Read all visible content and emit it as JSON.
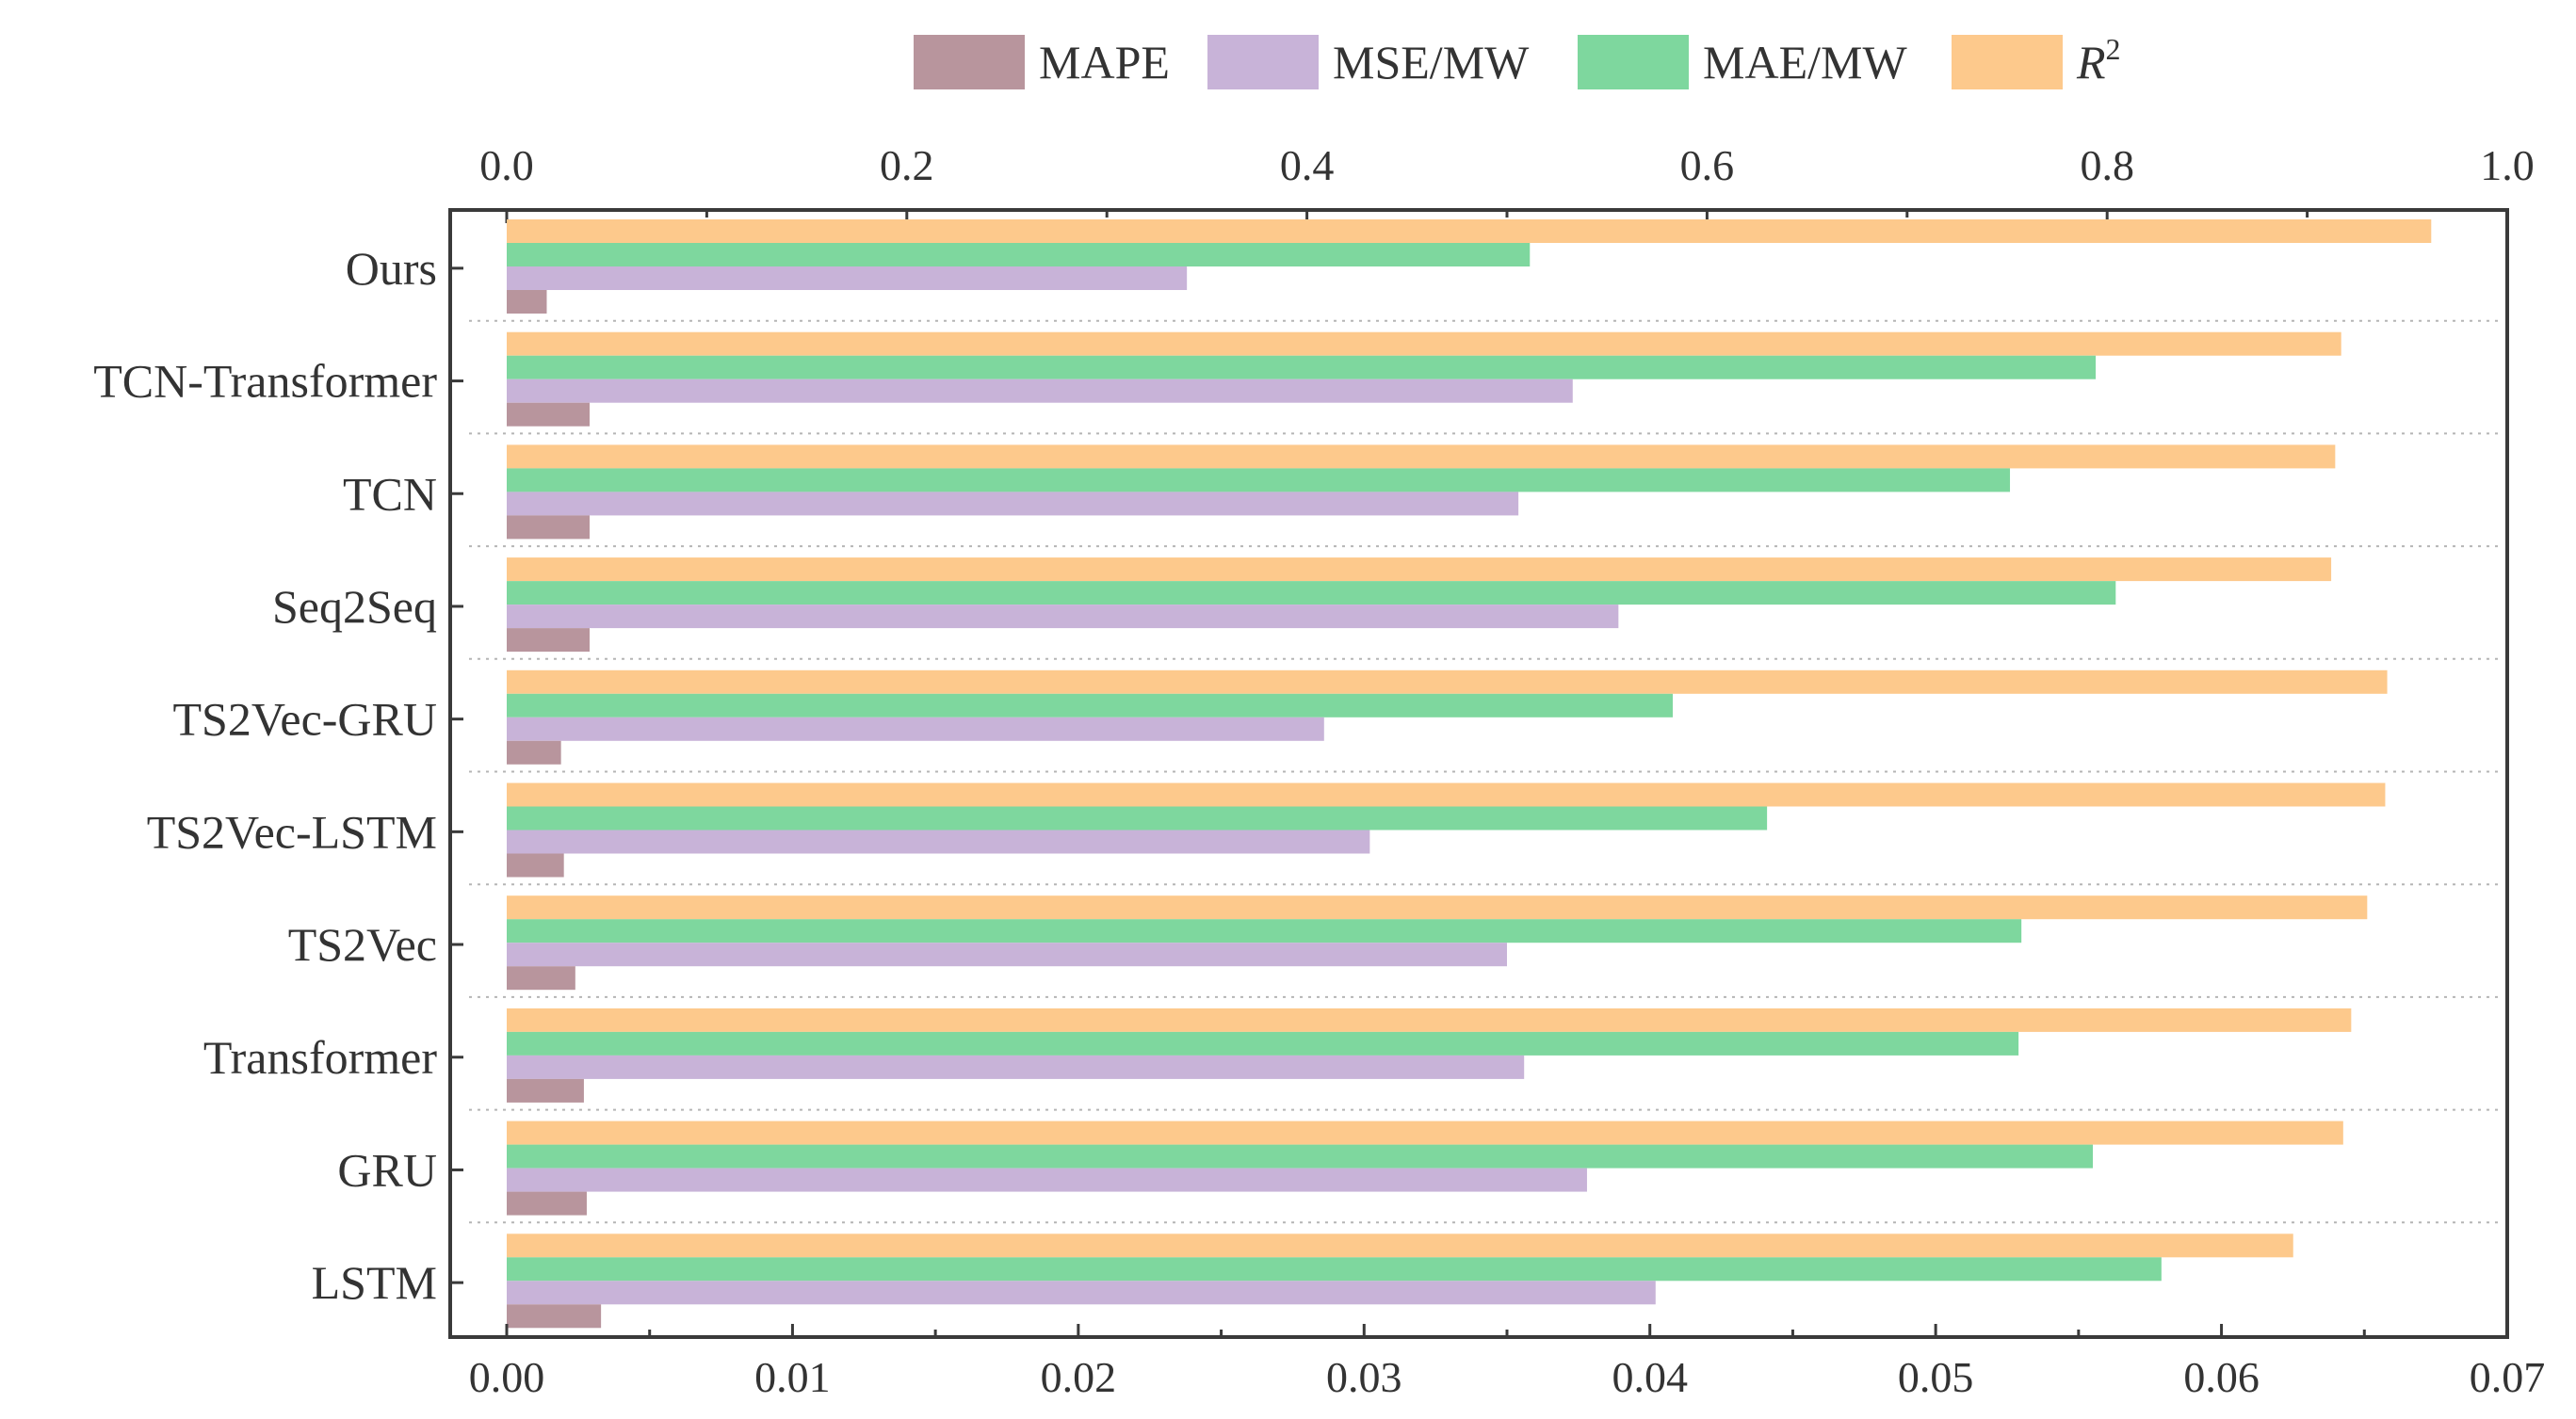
{
  "chart_data": {
    "type": "bar",
    "orientation": "horizontal",
    "legend": {
      "placement": "top",
      "entries": [
        {
          "key": "mape",
          "label": "MAPE",
          "color": "#b8959d"
        },
        {
          "key": "mse",
          "label": "MSE/MW",
          "color": "#c8b3d8"
        },
        {
          "key": "mae",
          "label": "MAE/MW",
          "color": "#7ed79e"
        },
        {
          "key": "r2",
          "label": "R",
          "sup": "2",
          "color": "#fdc98c"
        }
      ]
    },
    "bottom_axis": {
      "range": [
        0,
        0.07
      ],
      "ticks": [
        "0.00",
        "0.01",
        "0.02",
        "0.03",
        "0.04",
        "0.05",
        "0.06",
        "0.07"
      ],
      "applies_to": [
        "MAPE",
        "MSE/MW",
        "MAE/MW"
      ]
    },
    "top_axis": {
      "range": [
        0,
        1.0
      ],
      "ticks": [
        "0.0",
        "0.2",
        "0.4",
        "0.6",
        "0.8",
        "1.0"
      ],
      "applies_to": [
        "R2"
      ]
    },
    "categories": [
      "Ours",
      "TCN-Transformer",
      "TCN",
      "Seq2Seq",
      "TS2Vec-GRU",
      "TS2Vec-LSTM",
      "TS2Vec",
      "Transformer",
      "GRU",
      "LSTM"
    ],
    "series": [
      {
        "name": "MAPE",
        "key": "mape",
        "axis": "bottom",
        "values": [
          0.0014,
          0.0029,
          0.0029,
          0.0029,
          0.0019,
          0.002,
          0.0024,
          0.0027,
          0.0028,
          0.0033
        ]
      },
      {
        "name": "MSE/MW",
        "key": "mse",
        "axis": "bottom",
        "values": [
          0.0238,
          0.0373,
          0.0354,
          0.0389,
          0.0286,
          0.0302,
          0.035,
          0.0356,
          0.0378,
          0.0402
        ]
      },
      {
        "name": "MAE/MW",
        "key": "mae",
        "axis": "bottom",
        "values": [
          0.0358,
          0.0556,
          0.0526,
          0.0563,
          0.0408,
          0.0441,
          0.053,
          0.0529,
          0.0555,
          0.0579
        ]
      },
      {
        "name": "R2",
        "key": "r2",
        "axis": "top",
        "values": [
          0.962,
          0.917,
          0.914,
          0.912,
          0.94,
          0.939,
          0.93,
          0.922,
          0.918,
          0.893
        ]
      }
    ]
  }
}
